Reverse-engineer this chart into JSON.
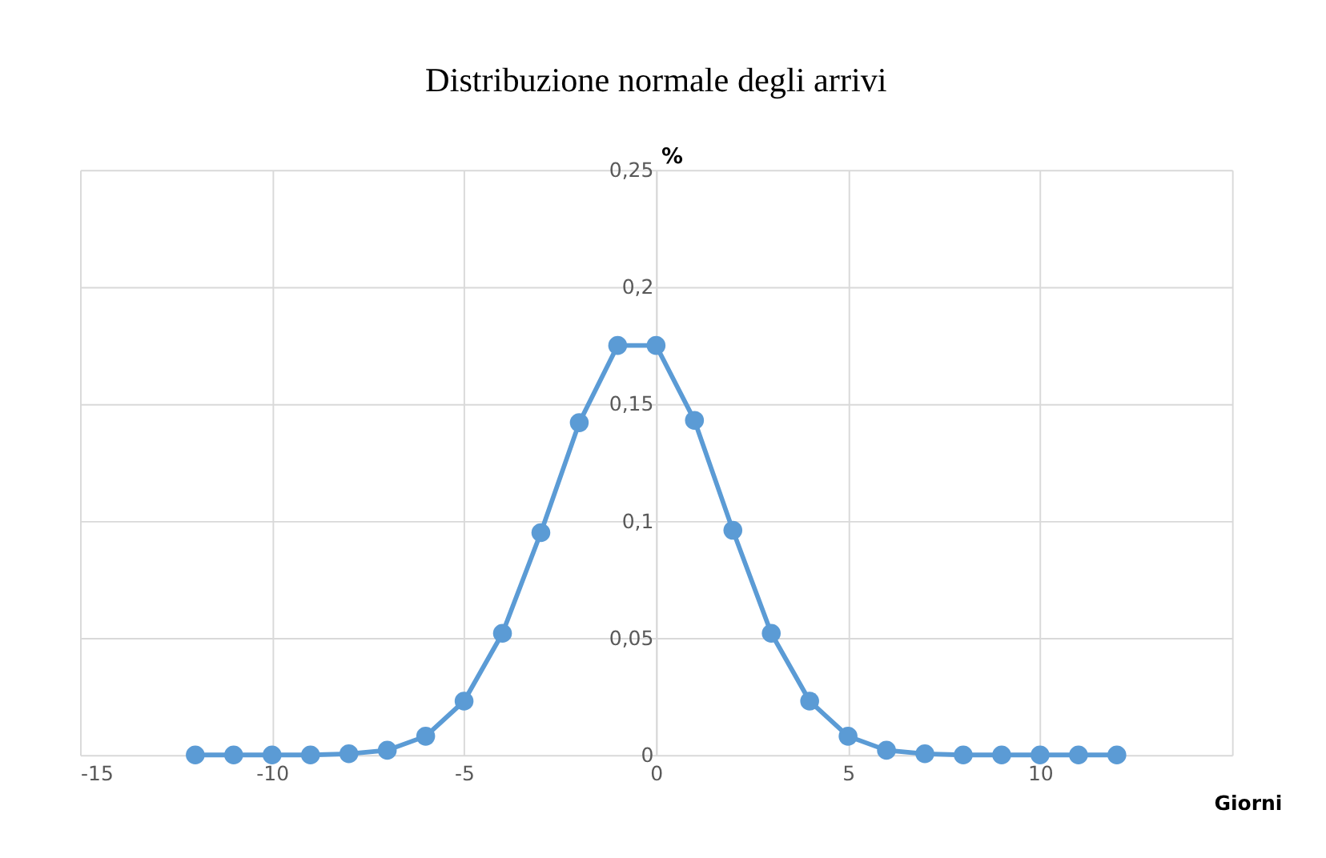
{
  "chart_data": {
    "type": "line",
    "title": "Distribuzione normale degli arrivi",
    "xlabel": "Giorni",
    "ylabel": "%",
    "x": [
      -12,
      -11,
      -10,
      -9,
      -8,
      -7,
      -6,
      -5,
      -4,
      -3,
      -2,
      -1,
      0,
      1,
      2,
      3,
      4,
      5,
      6,
      7,
      8,
      9,
      10,
      11,
      12
    ],
    "series": [
      {
        "color": "#5b9bd5",
        "values": [
          0,
          0,
          0,
          0,
          0.0005,
          0.002,
          0.008,
          0.023,
          0.052,
          0.095,
          0.142,
          0.175,
          0.175,
          0.143,
          0.096,
          0.052,
          0.023,
          0.008,
          0.002,
          0.0005,
          0,
          0,
          0,
          0,
          0
        ]
      }
    ],
    "xlim": [
      -15,
      15
    ],
    "xticks": [
      -15,
      -10,
      -5,
      0,
      5,
      10,
      {
        "value": 15,
        "label": null
      }
    ],
    "ylim": [
      0,
      0.25
    ],
    "yticks": [
      0,
      {
        "value": 0.05,
        "label": "0,05"
      },
      {
        "value": 0.1,
        "label": "0,1"
      },
      {
        "value": 0.15,
        "label": "0,15"
      },
      {
        "value": 0.2,
        "label": "0,2"
      },
      {
        "value": 0.25,
        "label": "0,25"
      }
    ],
    "grid": true,
    "marker": "circle",
    "line_style": "solid"
  }
}
